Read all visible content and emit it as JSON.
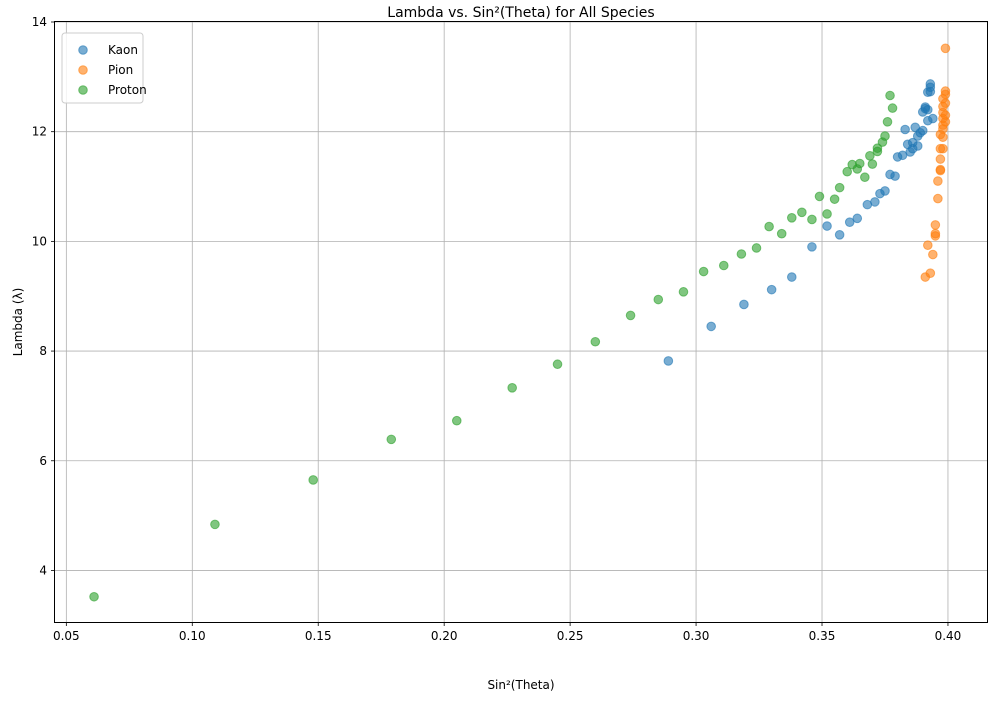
{
  "chart_data": {
    "type": "scatter",
    "title": "Lambda vs. Sin²(Theta) for All Species",
    "xlabel": "Sin²(Theta)",
    "ylabel": "Lambda (λ)",
    "xlim": [
      0.0455,
      0.4155
    ],
    "ylim": [
      3.06,
      14.0
    ],
    "xticks": [
      0.05,
      0.1,
      0.15,
      0.2,
      0.25,
      0.3,
      0.35,
      0.4
    ],
    "xtick_labels": [
      "0.05",
      "0.10",
      "0.15",
      "0.20",
      "0.25",
      "0.30",
      "0.35",
      "0.40"
    ],
    "yticks": [
      4,
      6,
      8,
      10,
      12,
      14
    ],
    "ytick_labels": [
      "4",
      "6",
      "8",
      "10",
      "12",
      "14"
    ],
    "grid": true,
    "legend_position": "top-left",
    "series": [
      {
        "name": "Kaon",
        "color": "#1f77b4",
        "points": [
          [
            0.289,
            7.82
          ],
          [
            0.306,
            8.45
          ],
          [
            0.319,
            8.85
          ],
          [
            0.33,
            9.12
          ],
          [
            0.338,
            9.35
          ],
          [
            0.346,
            9.9
          ],
          [
            0.352,
            10.28
          ],
          [
            0.357,
            10.12
          ],
          [
            0.361,
            10.35
          ],
          [
            0.364,
            10.42
          ],
          [
            0.368,
            10.67
          ],
          [
            0.371,
            10.72
          ],
          [
            0.373,
            10.87
          ],
          [
            0.375,
            10.92
          ],
          [
            0.377,
            11.22
          ],
          [
            0.379,
            11.19
          ],
          [
            0.38,
            11.54
          ],
          [
            0.382,
            11.57
          ],
          [
            0.383,
            12.04
          ],
          [
            0.384,
            11.77
          ],
          [
            0.385,
            11.63
          ],
          [
            0.386,
            11.69
          ],
          [
            0.386,
            11.8
          ],
          [
            0.387,
            12.08
          ],
          [
            0.388,
            11.92
          ],
          [
            0.388,
            11.74
          ],
          [
            0.389,
            11.98
          ],
          [
            0.39,
            12.36
          ],
          [
            0.39,
            12.02
          ],
          [
            0.391,
            12.42
          ],
          [
            0.391,
            12.45
          ],
          [
            0.392,
            12.4
          ],
          [
            0.392,
            12.2
          ],
          [
            0.392,
            12.72
          ],
          [
            0.393,
            12.73
          ],
          [
            0.393,
            12.81
          ],
          [
            0.393,
            12.87
          ],
          [
            0.394,
            12.24
          ]
        ]
      },
      {
        "name": "Pion",
        "color": "#ff7f0e",
        "points": [
          [
            0.391,
            9.35
          ],
          [
            0.392,
            9.93
          ],
          [
            0.393,
            9.42
          ],
          [
            0.394,
            9.76
          ],
          [
            0.395,
            10.1
          ],
          [
            0.395,
            10.3
          ],
          [
            0.395,
            10.14
          ],
          [
            0.396,
            10.78
          ],
          [
            0.396,
            11.1
          ],
          [
            0.397,
            11.31
          ],
          [
            0.397,
            11.5
          ],
          [
            0.397,
            11.29
          ],
          [
            0.397,
            11.69
          ],
          [
            0.398,
            11.69
          ],
          [
            0.397,
            11.95
          ],
          [
            0.398,
            11.9
          ],
          [
            0.398,
            12.05
          ],
          [
            0.398,
            12.12
          ],
          [
            0.398,
            12.24
          ],
          [
            0.399,
            12.18
          ],
          [
            0.398,
            12.35
          ],
          [
            0.399,
            12.3
          ],
          [
            0.398,
            12.46
          ],
          [
            0.399,
            12.52
          ],
          [
            0.398,
            12.6
          ],
          [
            0.399,
            12.68
          ],
          [
            0.399,
            12.74
          ],
          [
            0.399,
            13.52
          ]
        ]
      },
      {
        "name": "Proton",
        "color": "#2ca02c",
        "points": [
          [
            0.061,
            3.52
          ],
          [
            0.109,
            4.84
          ],
          [
            0.148,
            5.65
          ],
          [
            0.179,
            6.39
          ],
          [
            0.205,
            6.73
          ],
          [
            0.227,
            7.33
          ],
          [
            0.245,
            7.76
          ],
          [
            0.26,
            8.17
          ],
          [
            0.274,
            8.65
          ],
          [
            0.285,
            8.94
          ],
          [
            0.295,
            9.08
          ],
          [
            0.303,
            9.45
          ],
          [
            0.311,
            9.56
          ],
          [
            0.318,
            9.77
          ],
          [
            0.324,
            9.88
          ],
          [
            0.329,
            10.27
          ],
          [
            0.334,
            10.14
          ],
          [
            0.338,
            10.43
          ],
          [
            0.342,
            10.53
          ],
          [
            0.346,
            10.4
          ],
          [
            0.349,
            10.82
          ],
          [
            0.352,
            10.5
          ],
          [
            0.355,
            10.77
          ],
          [
            0.357,
            10.98
          ],
          [
            0.36,
            11.27
          ],
          [
            0.362,
            11.4
          ],
          [
            0.364,
            11.32
          ],
          [
            0.365,
            11.42
          ],
          [
            0.367,
            11.17
          ],
          [
            0.369,
            11.56
          ],
          [
            0.37,
            11.41
          ],
          [
            0.372,
            11.7
          ],
          [
            0.372,
            11.64
          ],
          [
            0.374,
            11.81
          ],
          [
            0.375,
            11.92
          ],
          [
            0.376,
            12.18
          ],
          [
            0.377,
            12.66
          ],
          [
            0.378,
            12.43
          ]
        ]
      }
    ]
  }
}
